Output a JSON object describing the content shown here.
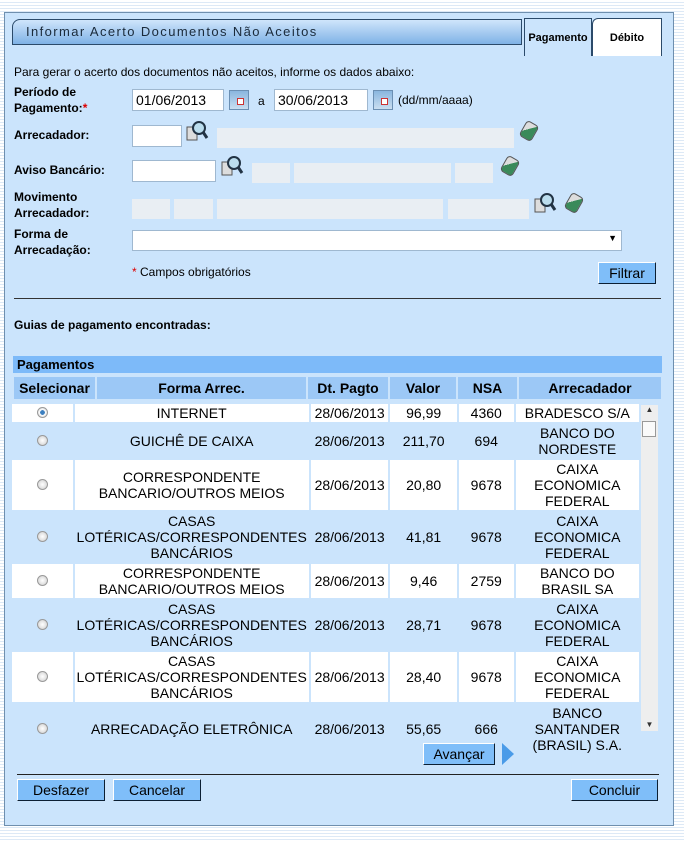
{
  "title": "Informar Acerto Documentos Não Aceitos",
  "tabs": [
    "Pagamento",
    "Débito"
  ],
  "intro": "Para gerar o acerto dos documentos não aceitos, informe os dados abaixo:",
  "form": {
    "periodo_label1": "Período de",
    "periodo_label2": "Pagamento:",
    "required_mark": "*",
    "date_from": "01/06/2013",
    "date_sep": "a",
    "date_to": "30/06/2013",
    "date_format": "(dd/mm/aaaa)",
    "arrecadador_label": "Arrecadador:",
    "aviso_label": "Aviso Bancário:",
    "movimento_label1": "Movimento",
    "movimento_label2": "Arrecadador:",
    "forma_label1": "Forma de",
    "forma_label2": "Arrecadação:",
    "forma_value": "",
    "required_note": "Campos obrigatórios",
    "filter_button": "Filtrar"
  },
  "results_heading": "Guias de pagamento encontradas:",
  "table": {
    "title": "Pagamentos",
    "columns": [
      "Selecionar",
      "Forma Arrec.",
      "Dt. Pagto",
      "Valor",
      "NSA",
      "Arrecadador"
    ],
    "rows": [
      {
        "selected": true,
        "forma": "INTERNET",
        "dt": "28/06/2013",
        "valor": "96,99",
        "nsa": "4360",
        "arrec": "BRADESCO S/A"
      },
      {
        "selected": false,
        "forma": "GUICHÊ DE CAIXA",
        "dt": "28/06/2013",
        "valor": "211,70",
        "nsa": "694",
        "arrec": "BANCO DO NORDESTE"
      },
      {
        "selected": false,
        "forma": "CORRESPONDENTE BANCARIO/OUTROS MEIOS",
        "dt": "28/06/2013",
        "valor": "20,80",
        "nsa": "9678",
        "arrec": "CAIXA ECONOMICA FEDERAL"
      },
      {
        "selected": false,
        "forma": "CASAS LOTÉRICAS/CORRESPONDENTES BANCÁRIOS",
        "dt": "28/06/2013",
        "valor": "41,81",
        "nsa": "9678",
        "arrec": "CAIXA ECONOMICA FEDERAL"
      },
      {
        "selected": false,
        "forma": "CORRESPONDENTE BANCARIO/OUTROS MEIOS",
        "dt": "28/06/2013",
        "valor": "9,46",
        "nsa": "2759",
        "arrec": "BANCO DO BRASIL SA"
      },
      {
        "selected": false,
        "forma": "CASAS LOTÉRICAS/CORRESPONDENTES BANCÁRIOS",
        "dt": "28/06/2013",
        "valor": "28,71",
        "nsa": "9678",
        "arrec": "CAIXA ECONOMICA FEDERAL"
      },
      {
        "selected": false,
        "forma": "CASAS LOTÉRICAS/CORRESPONDENTES BANCÁRIOS",
        "dt": "28/06/2013",
        "valor": "28,40",
        "nsa": "9678",
        "arrec": "CAIXA ECONOMICA FEDERAL"
      },
      {
        "selected": false,
        "forma": "ARRECADAÇÃO ELETRÔNICA",
        "dt": "28/06/2013",
        "valor": "55,65",
        "nsa": "666",
        "arrec": "BANCO SANTANDER (BRASIL) S.A."
      }
    ]
  },
  "buttons": {
    "advance": "Avançar",
    "undo": "Desfazer",
    "cancel": "Cancelar",
    "finish": "Concluir"
  }
}
